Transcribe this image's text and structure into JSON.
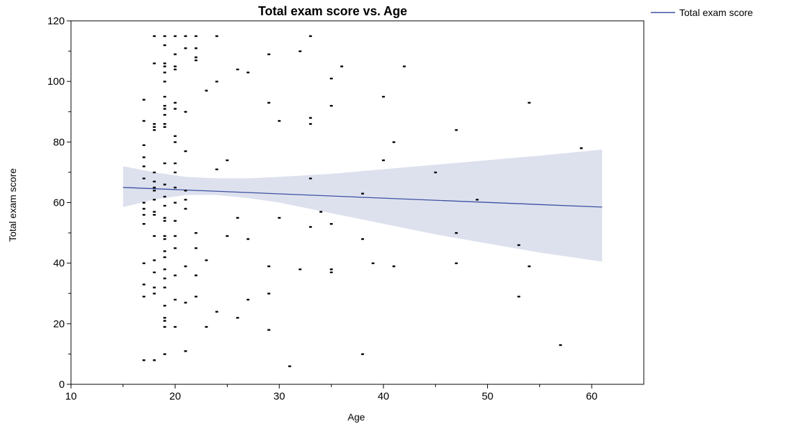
{
  "chart_data": {
    "type": "scatter",
    "title": "Total exam score vs. Age",
    "xlabel": "Age",
    "ylabel": "Total exam score",
    "xlim": [
      10,
      65
    ],
    "ylim": [
      0,
      120
    ],
    "x_ticks": [
      10,
      20,
      30,
      40,
      50,
      60
    ],
    "y_ticks": [
      0,
      20,
      40,
      60,
      80,
      100,
      120
    ],
    "grid": false,
    "legend_position": "top-right",
    "colors": {
      "points": "#000000",
      "fit_line": "#3b4fa0",
      "confidence_band": "#dde1ee"
    },
    "legend": [
      {
        "label": "Total exam score",
        "kind": "line",
        "color": "#3b4fa0"
      }
    ],
    "fit": {
      "series_name": "Total exam score",
      "x_range": [
        15,
        61
      ],
      "y_at_start": 65,
      "y_at_end": 58.5
    },
    "confidence_band": [
      {
        "x": 15,
        "lower": 58.5,
        "upper": 72
      },
      {
        "x": 18,
        "lower": 61,
        "upper": 70
      },
      {
        "x": 21,
        "lower": 62.5,
        "upper": 68.5
      },
      {
        "x": 24,
        "lower": 62.5,
        "upper": 68
      },
      {
        "x": 27,
        "lower": 61.5,
        "upper": 68
      },
      {
        "x": 30,
        "lower": 60,
        "upper": 68.5
      },
      {
        "x": 35,
        "lower": 56.5,
        "upper": 69.5
      },
      {
        "x": 40,
        "lower": 53,
        "upper": 71
      },
      {
        "x": 45,
        "lower": 49.5,
        "upper": 72.5
      },
      {
        "x": 50,
        "lower": 46.5,
        "upper": 74
      },
      {
        "x": 55,
        "lower": 43.5,
        "upper": 75.5
      },
      {
        "x": 61,
        "lower": 40.5,
        "upper": 77.5
      }
    ],
    "points": [
      [
        17,
        94
      ],
      [
        17,
        87
      ],
      [
        17,
        79
      ],
      [
        17,
        75
      ],
      [
        17,
        72
      ],
      [
        17,
        68
      ],
      [
        17,
        60
      ],
      [
        17,
        58
      ],
      [
        17,
        56
      ],
      [
        17,
        53
      ],
      [
        17,
        40
      ],
      [
        17,
        33
      ],
      [
        17,
        29
      ],
      [
        17,
        8
      ],
      [
        18,
        115
      ],
      [
        18,
        106
      ],
      [
        18,
        86
      ],
      [
        18,
        85
      ],
      [
        18,
        84
      ],
      [
        18,
        70
      ],
      [
        18,
        67
      ],
      [
        18,
        65
      ],
      [
        18,
        64
      ],
      [
        18,
        61
      ],
      [
        18,
        57
      ],
      [
        18,
        56
      ],
      [
        18,
        49
      ],
      [
        18,
        41
      ],
      [
        18,
        37
      ],
      [
        18,
        32
      ],
      [
        18,
        30
      ],
      [
        18,
        8
      ],
      [
        19,
        115
      ],
      [
        19,
        112
      ],
      [
        19,
        106
      ],
      [
        19,
        105
      ],
      [
        19,
        103
      ],
      [
        19,
        100
      ],
      [
        19,
        95
      ],
      [
        19,
        92
      ],
      [
        19,
        91
      ],
      [
        19,
        89
      ],
      [
        19,
        86
      ],
      [
        19,
        85
      ],
      [
        19,
        73
      ],
      [
        19,
        66
      ],
      [
        19,
        62
      ],
      [
        19,
        59
      ],
      [
        19,
        55
      ],
      [
        19,
        54
      ],
      [
        19,
        49
      ],
      [
        19,
        48
      ],
      [
        19,
        44
      ],
      [
        19,
        42
      ],
      [
        19,
        38
      ],
      [
        19,
        35
      ],
      [
        19,
        32
      ],
      [
        19,
        26
      ],
      [
        19,
        22
      ],
      [
        19,
        21
      ],
      [
        19,
        19
      ],
      [
        19,
        10
      ],
      [
        20,
        115
      ],
      [
        20,
        109
      ],
      [
        20,
        105
      ],
      [
        20,
        104
      ],
      [
        20,
        93
      ],
      [
        20,
        91
      ],
      [
        20,
        82
      ],
      [
        20,
        80
      ],
      [
        20,
        73
      ],
      [
        20,
        70
      ],
      [
        20,
        65
      ],
      [
        20,
        60
      ],
      [
        20,
        54
      ],
      [
        20,
        49
      ],
      [
        20,
        45
      ],
      [
        20,
        36
      ],
      [
        20,
        28
      ],
      [
        20,
        19
      ],
      [
        21,
        115
      ],
      [
        21,
        111
      ],
      [
        21,
        90
      ],
      [
        21,
        77
      ],
      [
        21,
        64
      ],
      [
        21,
        61
      ],
      [
        21,
        58
      ],
      [
        21,
        39
      ],
      [
        21,
        27
      ],
      [
        21,
        11
      ],
      [
        22,
        115
      ],
      [
        22,
        111
      ],
      [
        22,
        108
      ],
      [
        22,
        107
      ],
      [
        22,
        50
      ],
      [
        22,
        45
      ],
      [
        22,
        36
      ],
      [
        22,
        29
      ],
      [
        23,
        97
      ],
      [
        23,
        41
      ],
      [
        23,
        19
      ],
      [
        24,
        115
      ],
      [
        24,
        100
      ],
      [
        24,
        71
      ],
      [
        24,
        24
      ],
      [
        25,
        74
      ],
      [
        25,
        49
      ],
      [
        26,
        104
      ],
      [
        26,
        55
      ],
      [
        26,
        22
      ],
      [
        27,
        103
      ],
      [
        27,
        48
      ],
      [
        27,
        28
      ],
      [
        29,
        109
      ],
      [
        29,
        93
      ],
      [
        29,
        39
      ],
      [
        29,
        30
      ],
      [
        29,
        18
      ],
      [
        30,
        87
      ],
      [
        30,
        55
      ],
      [
        31,
        6
      ],
      [
        32,
        110
      ],
      [
        32,
        38
      ],
      [
        33,
        115
      ],
      [
        33,
        88
      ],
      [
        33,
        86
      ],
      [
        33,
        68
      ],
      [
        33,
        52
      ],
      [
        34,
        57
      ],
      [
        35,
        101
      ],
      [
        35,
        92
      ],
      [
        35,
        53
      ],
      [
        35,
        38
      ],
      [
        35,
        37
      ],
      [
        36,
        105
      ],
      [
        38,
        63
      ],
      [
        38,
        48
      ],
      [
        38,
        10
      ],
      [
        39,
        40
      ],
      [
        40,
        95
      ],
      [
        40,
        74
      ],
      [
        41,
        80
      ],
      [
        41,
        39
      ],
      [
        42,
        105
      ],
      [
        45,
        70
      ],
      [
        47,
        84
      ],
      [
        47,
        50
      ],
      [
        47,
        40
      ],
      [
        49,
        61
      ],
      [
        53,
        46
      ],
      [
        53,
        29
      ],
      [
        54,
        93
      ],
      [
        54,
        39
      ],
      [
        57,
        13
      ],
      [
        59,
        78
      ]
    ]
  }
}
